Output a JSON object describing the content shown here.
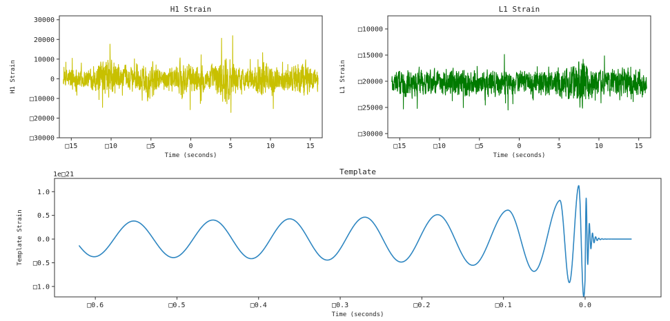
{
  "chart_data": [
    {
      "type": "line",
      "title": "H1 Strain",
      "xlabel": "Time (seconds)",
      "ylabel": "H1 Strain",
      "xlim": [
        -16.5,
        16.5
      ],
      "ylim": [
        -30000,
        32000
      ],
      "x_ticks": [
        -15,
        -10,
        -5,
        0,
        5,
        10,
        15
      ],
      "x_tick_labels": [
        "□15",
        "□10",
        "□5",
        "0",
        "5",
        "10",
        "15"
      ],
      "y_ticks": [
        30000,
        20000,
        10000,
        0,
        -10000,
        -20000,
        -30000
      ],
      "y_tick_labels": [
        "30000",
        "20000",
        "10000",
        "0",
        "□10000",
        "□20000",
        "□30000"
      ],
      "grid": false,
      "color": "#c8c000",
      "series": [
        {
          "x_start": -16,
          "x_end": 16,
          "samples": 1600,
          "center": 0,
          "envelope": [
            {
              "x": -16,
              "amp": 9000
            },
            {
              "x": -15,
              "amp": 16000
            },
            {
              "x": -14,
              "amp": 12000
            },
            {
              "x": -13,
              "amp": 9500
            },
            {
              "x": -12,
              "amp": 14000
            },
            {
              "x": -11,
              "amp": 20000
            },
            {
              "x": -10,
              "amp": 26000
            },
            {
              "x": -9,
              "amp": 15000
            },
            {
              "x": -8,
              "amp": 14000
            },
            {
              "x": -7,
              "amp": 12000
            },
            {
              "x": -6,
              "amp": 18000
            },
            {
              "x": -5,
              "amp": 26000
            },
            {
              "x": -4,
              "amp": 14000
            },
            {
              "x": -3,
              "amp": 12000
            },
            {
              "x": -2,
              "amp": 13000
            },
            {
              "x": -1,
              "amp": 24000
            },
            {
              "x": 0,
              "amp": 16000
            },
            {
              "x": 1,
              "amp": 15000
            },
            {
              "x": 2,
              "amp": 13000
            },
            {
              "x": 3,
              "amp": 18000
            },
            {
              "x": 4,
              "amp": 28000
            },
            {
              "x": 5,
              "amp": 27000
            },
            {
              "x": 6,
              "amp": 13000
            },
            {
              "x": 7,
              "amp": 12000
            },
            {
              "x": 8,
              "amp": 15000
            },
            {
              "x": 9,
              "amp": 21000
            },
            {
              "x": 10,
              "amp": 17000
            },
            {
              "x": 11,
              "amp": 12000
            },
            {
              "x": 12,
              "amp": 14000
            },
            {
              "x": 13,
              "amp": 16000
            },
            {
              "x": 14,
              "amp": 25000
            },
            {
              "x": 15,
              "amp": 13000
            },
            {
              "x": 16,
              "amp": 14000
            }
          ]
        }
      ]
    },
    {
      "type": "line",
      "title": "L1 Strain",
      "xlabel": "Time (seconds)",
      "ylabel": "L1 Strain",
      "xlim": [
        -16.5,
        16.5
      ],
      "ylim": [
        -30800,
        -7500
      ],
      "x_ticks": [
        -15,
        -10,
        -5,
        0,
        5,
        10,
        15
      ],
      "x_tick_labels": [
        "□15",
        "□10",
        "□5",
        "0",
        "5",
        "10",
        "15"
      ],
      "y_ticks": [
        -10000,
        -15000,
        -20000,
        -25000,
        -30000
      ],
      "y_tick_labels": [
        "□10000",
        "□15000",
        "□20000",
        "□25000",
        "□30000"
      ],
      "grid": false,
      "color": "#007a00",
      "series": [
        {
          "x_start": -16,
          "x_end": 16,
          "samples": 1600,
          "center": -20300,
          "envelope": [
            {
              "x": -16,
              "amp": 5000
            },
            {
              "x": -15,
              "amp": 6000
            },
            {
              "x": -14,
              "amp": 5500
            },
            {
              "x": -13,
              "amp": 6500
            },
            {
              "x": -12,
              "amp": 5500
            },
            {
              "x": -11,
              "amp": 6000
            },
            {
              "x": -10,
              "amp": 5000
            },
            {
              "x": -9,
              "amp": 5500
            },
            {
              "x": -8,
              "amp": 6000
            },
            {
              "x": -7,
              "amp": 6500
            },
            {
              "x": -6,
              "amp": 5500
            },
            {
              "x": -5,
              "amp": 5000
            },
            {
              "x": -4,
              "amp": 5500
            },
            {
              "x": -3,
              "amp": 6500
            },
            {
              "x": -2,
              "amp": 5500
            },
            {
              "x": -1,
              "amp": 5000
            },
            {
              "x": 0,
              "amp": 5500
            },
            {
              "x": 1,
              "amp": 5000
            },
            {
              "x": 2,
              "amp": 5500
            },
            {
              "x": 3,
              "amp": 6000
            },
            {
              "x": 4,
              "amp": 5500
            },
            {
              "x": 5,
              "amp": 6500
            },
            {
              "x": 6,
              "amp": 6000
            },
            {
              "x": 7,
              "amp": 9000
            },
            {
              "x": 8,
              "amp": 11500
            },
            {
              "x": 9,
              "amp": 6500
            },
            {
              "x": 10,
              "amp": 5500
            },
            {
              "x": 11,
              "amp": 5000
            },
            {
              "x": 12,
              "amp": 6000
            },
            {
              "x": 13,
              "amp": 6500
            },
            {
              "x": 14,
              "amp": 6000
            },
            {
              "x": 15,
              "amp": 5500
            },
            {
              "x": 16,
              "amp": 5000
            }
          ]
        }
      ]
    },
    {
      "type": "line",
      "title": "Template",
      "xlabel": "Time (seconds)",
      "ylabel": "Template Strain",
      "offset_text": "1e□21",
      "xlim": [
        -0.65,
        0.093
      ],
      "ylim": [
        -1.22,
        1.28
      ],
      "x_ticks": [
        -0.6,
        -0.5,
        -0.4,
        -0.3,
        -0.2,
        -0.1,
        0.0
      ],
      "x_tick_labels": [
        "□0.6",
        "□0.5",
        "□0.4",
        "□0.3",
        "□0.2",
        "□0.1",
        "0.0"
      ],
      "y_ticks": [
        1.0,
        0.5,
        0.0,
        -0.5,
        -1.0
      ],
      "y_tick_labels": [
        "1.0",
        "0.5",
        "0.0",
        "□0.5",
        "□1.0"
      ],
      "grid": false,
      "color": "#2e86c1",
      "series": [
        {
          "x_start": -0.62,
          "x_end": 0.057,
          "samples": 3000,
          "amplitude_start": 0.37,
          "amplitude_peak": 1.22,
          "merger_time": 0.0,
          "peak_times": [
            -0.553,
            -0.456,
            -0.362,
            -0.27,
            -0.181,
            -0.095,
            -0.031,
            -0.008
          ],
          "ringdown_decay_s": 0.004
        }
      ]
    }
  ]
}
